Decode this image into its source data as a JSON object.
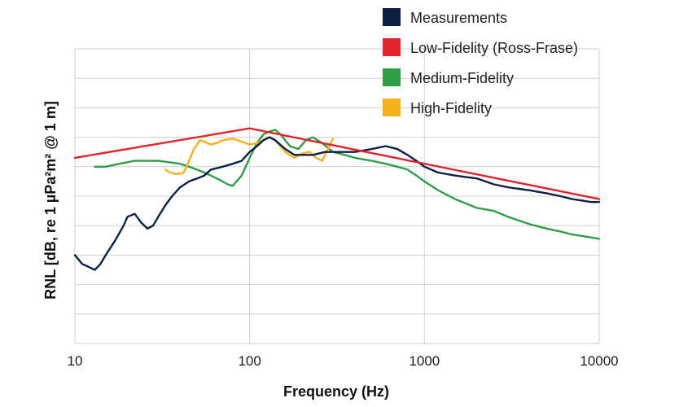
{
  "chart_data": {
    "type": "line",
    "title": "",
    "xlabel": "Frequency (Hz)",
    "ylabel": "RNL [dB, re 1 µPa²m² @ 1 m]",
    "x_scale": "log",
    "xlim": [
      10,
      10000
    ],
    "ylim": [
      0,
      10
    ],
    "x_ticks": [
      10,
      100,
      1000,
      10000
    ],
    "x_tick_labels": [
      "10",
      "100",
      "1000",
      "10000"
    ],
    "y_tick_labels_shown": false,
    "grid": true,
    "legend_position": "top-right",
    "series": [
      {
        "name": "Measurements",
        "color": "#0e1f45",
        "x": [
          10,
          11,
          12,
          13,
          14,
          15,
          17,
          19,
          20,
          22,
          24,
          26,
          28,
          30,
          33,
          36,
          40,
          45,
          50,
          55,
          60,
          70,
          80,
          90,
          100,
          110,
          120,
          130,
          140,
          160,
          180,
          200,
          230,
          270,
          300,
          350,
          400,
          500,
          600,
          700,
          800,
          900,
          1000,
          1200,
          1500,
          2000,
          2500,
          3000,
          4000,
          5000,
          6000,
          7000,
          8000,
          9000,
          10000
        ],
        "y": [
          3.0,
          2.7,
          2.6,
          2.5,
          2.7,
          3.0,
          3.5,
          4.0,
          4.3,
          4.4,
          4.1,
          3.9,
          4.0,
          4.3,
          4.7,
          5.0,
          5.3,
          5.5,
          5.6,
          5.7,
          5.9,
          6.0,
          6.1,
          6.2,
          6.5,
          6.7,
          6.9,
          7.0,
          6.9,
          6.6,
          6.4,
          6.4,
          6.4,
          6.5,
          6.5,
          6.5,
          6.5,
          6.6,
          6.7,
          6.6,
          6.4,
          6.2,
          6.0,
          5.8,
          5.7,
          5.6,
          5.4,
          5.3,
          5.2,
          5.1,
          5.0,
          4.9,
          4.85,
          4.8,
          4.8
        ]
      },
      {
        "name": "Low-Fidelity (Ross-Frase)",
        "color": "#e0252f",
        "x": [
          10,
          100,
          10000
        ],
        "y": [
          6.3,
          7.3,
          4.9
        ]
      },
      {
        "name": "Medium-Fidelity",
        "color": "#2f9e47",
        "x": [
          13,
          15,
          18,
          22,
          26,
          30,
          35,
          40,
          45,
          50,
          55,
          60,
          65,
          70,
          75,
          80,
          90,
          100,
          110,
          120,
          130,
          140,
          150,
          170,
          190,
          210,
          230,
          260,
          300,
          350,
          400,
          500,
          600,
          700,
          800,
          900,
          1000,
          1200,
          1500,
          2000,
          2500,
          3000,
          4000,
          5000,
          6000,
          7000,
          8000,
          9000,
          10000
        ],
        "y": [
          6.0,
          6.0,
          6.1,
          6.2,
          6.2,
          6.2,
          6.15,
          6.1,
          6.0,
          5.9,
          5.8,
          5.7,
          5.6,
          5.5,
          5.4,
          5.35,
          5.7,
          6.3,
          6.8,
          7.1,
          7.2,
          7.25,
          7.1,
          6.7,
          6.6,
          6.9,
          7.0,
          6.8,
          6.5,
          6.4,
          6.3,
          6.2,
          6.1,
          6.0,
          5.9,
          5.7,
          5.5,
          5.2,
          4.9,
          4.6,
          4.5,
          4.3,
          4.05,
          3.9,
          3.8,
          3.7,
          3.65,
          3.6,
          3.55
        ]
      },
      {
        "name": "High-Fidelity",
        "color": "#f5b11a",
        "x": [
          33,
          35,
          38,
          42,
          45,
          48,
          52,
          55,
          60,
          65,
          70,
          80,
          90,
          100,
          110,
          120,
          130,
          140,
          160,
          180,
          200,
          220,
          240,
          260,
          280,
          300
        ],
        "y": [
          5.9,
          5.8,
          5.75,
          5.8,
          6.2,
          6.6,
          6.9,
          6.85,
          6.75,
          6.8,
          6.9,
          6.95,
          6.85,
          6.75,
          6.8,
          6.9,
          7.0,
          6.9,
          6.5,
          6.3,
          6.45,
          6.5,
          6.3,
          6.2,
          6.6,
          6.95
        ]
      }
    ]
  }
}
